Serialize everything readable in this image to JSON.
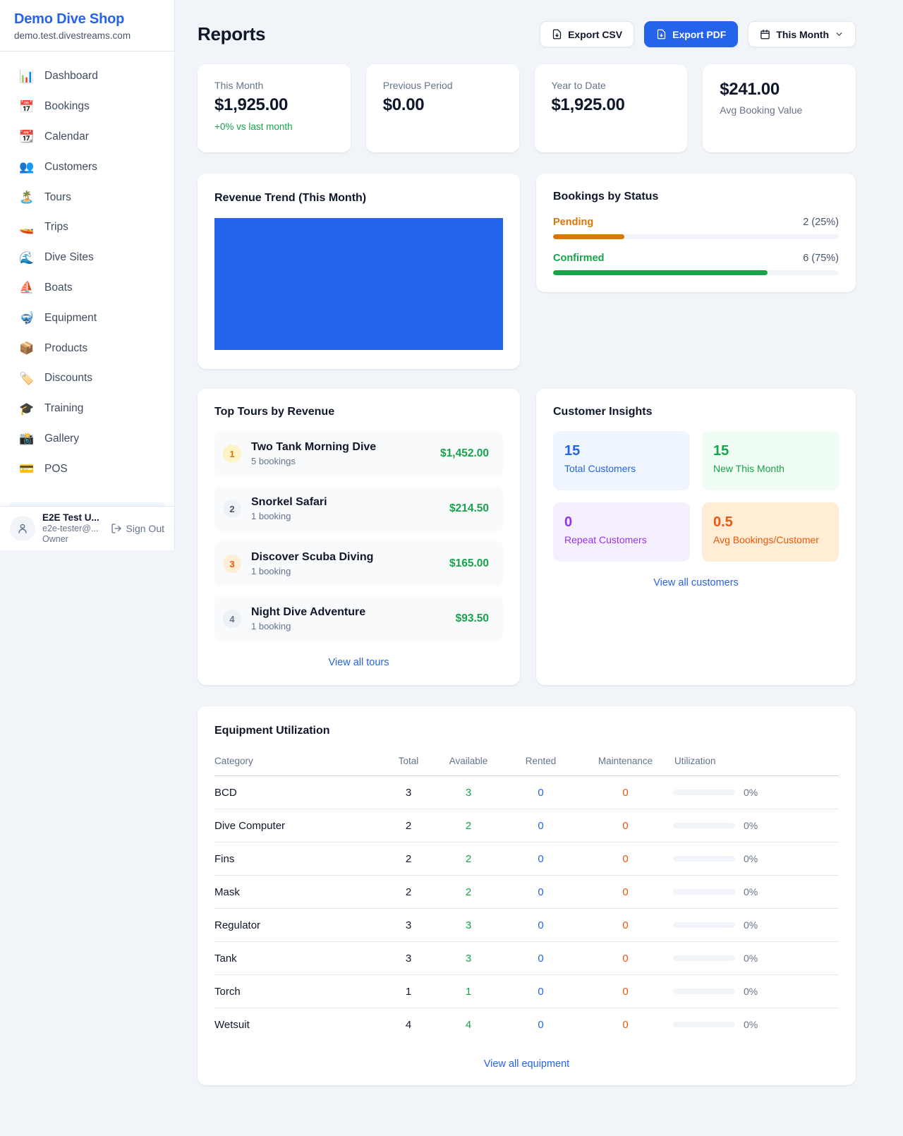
{
  "sidebar": {
    "shop_name": "Demo Dive Shop",
    "shop_domain": "demo.test.divestreams.com",
    "nav": [
      {
        "icon": "📊",
        "label": "Dashboard"
      },
      {
        "icon": "📅",
        "label": "Bookings"
      },
      {
        "icon": "📆",
        "label": "Calendar"
      },
      {
        "icon": "👥",
        "label": "Customers"
      },
      {
        "icon": "🏝️",
        "label": "Tours"
      },
      {
        "icon": "🚤",
        "label": "Trips"
      },
      {
        "icon": "🌊",
        "label": "Dive Sites"
      },
      {
        "icon": "⛵",
        "label": "Boats"
      },
      {
        "icon": "🤿",
        "label": "Equipment"
      },
      {
        "icon": "📦",
        "label": "Products"
      },
      {
        "icon": "🏷️",
        "label": "Discounts"
      },
      {
        "icon": "🎓",
        "label": "Training"
      },
      {
        "icon": "📸",
        "label": "Gallery"
      },
      {
        "icon": "💳",
        "label": "POS"
      }
    ],
    "user": {
      "name": "E2E Test U...",
      "email": "e2e-tester@...",
      "role": "Owner",
      "sign_out_label": "Sign Out"
    }
  },
  "header": {
    "title": "Reports",
    "export_csv_label": "Export CSV",
    "export_pdf_label": "Export PDF",
    "period_label": "This Month"
  },
  "stats": [
    {
      "label": "This Month",
      "value": "$1,925.00",
      "delta": "+0% vs last month"
    },
    {
      "label": "Previous Period",
      "value": "$0.00"
    },
    {
      "label": "Year to Date",
      "value": "$1,925.00"
    },
    {
      "label": "Avg Booking Value",
      "value": "$241.00"
    }
  ],
  "revenue_trend": {
    "title": "Revenue Trend (This Month)",
    "chart": {
      "type": "bar",
      "bar_color": "#2563eb",
      "note": "single bar filling entire plot area"
    }
  },
  "bookings_by_status": {
    "title": "Bookings by Status",
    "items": [
      {
        "label": "Pending",
        "count_text": "2 (25%)",
        "percent": 25,
        "color": "#d97706"
      },
      {
        "label": "Confirmed",
        "count_text": "6 (75%)",
        "percent": 75,
        "color": "#16a34a"
      }
    ]
  },
  "top_tours": {
    "title": "Top Tours by Revenue",
    "items": [
      {
        "rank": "1",
        "name": "Two Tank Morning Dive",
        "bookings": "5 bookings",
        "revenue": "$1,452.00"
      },
      {
        "rank": "2",
        "name": "Snorkel Safari",
        "bookings": "1 booking",
        "revenue": "$214.50"
      },
      {
        "rank": "3",
        "name": "Discover Scuba Diving",
        "bookings": "1 booking",
        "revenue": "$165.00"
      },
      {
        "rank": "4",
        "name": "Night Dive Adventure",
        "bookings": "1 booking",
        "revenue": "$93.50"
      }
    ],
    "view_all": "View all tours"
  },
  "customer_insights": {
    "title": "Customer Insights",
    "tiles": [
      {
        "value": "15",
        "label": "Total Customers",
        "color": "#2563eb",
        "bg": "#eff6ff"
      },
      {
        "value": "15",
        "label": "New This Month",
        "color": "#16a34a",
        "bg": "#f0fdf4"
      },
      {
        "value": "0",
        "label": "Repeat Customers",
        "color": "#9333ea",
        "bg": "#f6f0fe"
      },
      {
        "value": "0.5",
        "label": "Avg Bookings/Customer",
        "color": "#ea580c",
        "bg": "#ffedd5"
      }
    ],
    "view_all": "View all customers"
  },
  "equipment": {
    "title": "Equipment Utilization",
    "columns": [
      "Category",
      "Total",
      "Available",
      "Rented",
      "Maintenance",
      "Utilization"
    ],
    "rows": [
      {
        "category": "BCD",
        "total": "3",
        "available": "3",
        "rented": "0",
        "maintenance": "0",
        "utilization": "0%",
        "utilization_pct": 0
      },
      {
        "category": "Dive Computer",
        "total": "2",
        "available": "2",
        "rented": "0",
        "maintenance": "0",
        "utilization": "0%",
        "utilization_pct": 0
      },
      {
        "category": "Fins",
        "total": "2",
        "available": "2",
        "rented": "0",
        "maintenance": "0",
        "utilization": "0%",
        "utilization_pct": 0
      },
      {
        "category": "Mask",
        "total": "2",
        "available": "2",
        "rented": "0",
        "maintenance": "0",
        "utilization": "0%",
        "utilization_pct": 0
      },
      {
        "category": "Regulator",
        "total": "3",
        "available": "3",
        "rented": "0",
        "maintenance": "0",
        "utilization": "0%",
        "utilization_pct": 0
      },
      {
        "category": "Tank",
        "total": "3",
        "available": "3",
        "rented": "0",
        "maintenance": "0",
        "utilization": "0%",
        "utilization_pct": 0
      },
      {
        "category": "Torch",
        "total": "1",
        "available": "1",
        "rented": "0",
        "maintenance": "0",
        "utilization": "0%",
        "utilization_pct": 0
      },
      {
        "category": "Wetsuit",
        "total": "4",
        "available": "4",
        "rented": "0",
        "maintenance": "0",
        "utilization": "0%",
        "utilization_pct": 0
      }
    ],
    "view_all": "View all equipment"
  }
}
